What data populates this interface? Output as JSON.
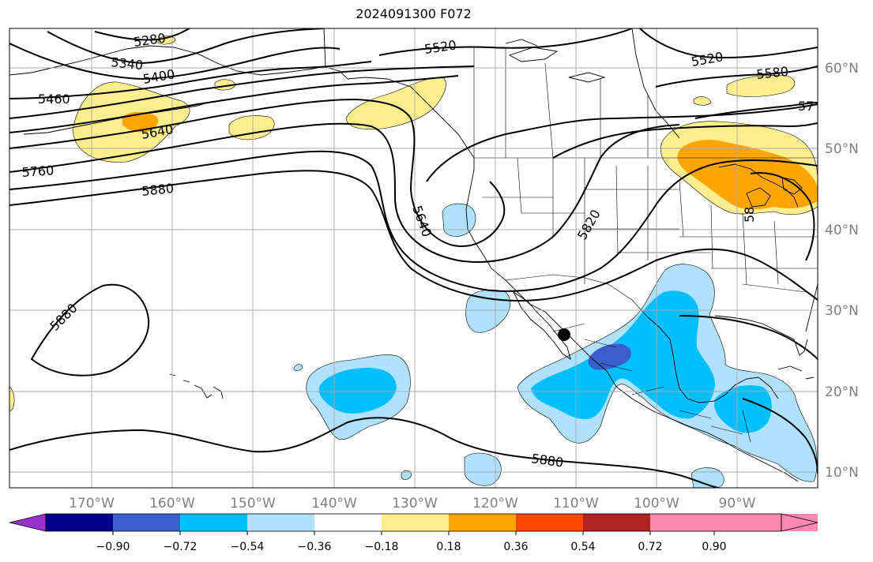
{
  "title": "2024091300 F072",
  "longitude_labels": [
    "170°W",
    "160°W",
    "150°W",
    "140°W",
    "130°W",
    "120°W",
    "110°W",
    "100°W",
    "90°W"
  ],
  "latitude_labels": [
    "60°N",
    "50°N",
    "40°N",
    "30°N",
    "20°N",
    "10°N"
  ],
  "colorbar": {
    "tick_labels": [
      "−0.90",
      "−0.72",
      "−0.54",
      "−0.36",
      "−0.18",
      "0.18",
      "0.36",
      "0.54",
      "0.72",
      "0.90"
    ],
    "colors": [
      "#9932cc",
      "#00008b",
      "#3a5fcd",
      "#00bfff",
      "#b0e2ff",
      "#ffffff",
      "#ffee90",
      "#ffa500",
      "#ff4500",
      "#b22222",
      "#ff88b0"
    ]
  },
  "contour_labels": {
    "c5280": "5280",
    "c5340": "5340",
    "c5400": "5400",
    "c5460": "5460",
    "c5520_a": "5520",
    "c5520_b": "5520",
    "c5580": "5580",
    "c5640_a": "5640",
    "c5640_b": "5640",
    "c5760": "5760",
    "c5880_a": "5880",
    "c5880_b": "5880",
    "c5880_c": "5880",
    "c5820": "5820",
    "c57x": "57",
    "c58x": "58"
  },
  "markers": {
    "point_label": "marker-dot"
  }
}
